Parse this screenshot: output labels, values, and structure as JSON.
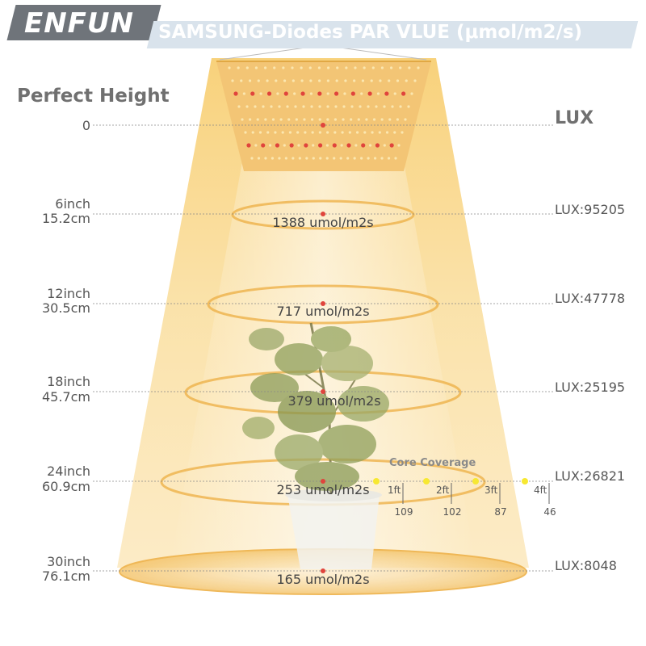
{
  "brand": "ENFUN",
  "title": "SAMSUNG-Diodes PAR VLUE (μmol/m2/s)",
  "perfect_height_label": "Perfect Height",
  "lux_header": "LUX",
  "colors": {
    "beam": "#f6c96a",
    "panel": "#f3c06b",
    "dot_red": "#e0443c",
    "dot_yellow": "#f7e832",
    "guide": "#888888"
  },
  "zero_label": "0",
  "levels": [
    {
      "inch": "6inch",
      "cm": "15.2cm",
      "ppfd": "1388 umol/m2s",
      "lux": "LUX:95205"
    },
    {
      "inch": "12inch",
      "cm": "30.5cm",
      "ppfd": "717 umol/m2s",
      "lux": "LUX:47778"
    },
    {
      "inch": "18inch",
      "cm": "45.7cm",
      "ppfd": "379 umol/m2s",
      "lux": "LUX:25195"
    },
    {
      "inch": "24inch",
      "cm": "60.9cm",
      "ppfd": "253 umol/m2s",
      "lux": "LUX:26821"
    },
    {
      "inch": "30inch",
      "cm": "76.1cm",
      "ppfd": "165 umol/m2s",
      "lux": "LUX:8048"
    }
  ],
  "core_coverage": {
    "label": "Core Coverage",
    "points": [
      {
        "distance": "1ft",
        "value": "109"
      },
      {
        "distance": "2ft",
        "value": "102"
      },
      {
        "distance": "3ft",
        "value": "87"
      },
      {
        "distance": "4ft",
        "value": "46"
      }
    ]
  }
}
